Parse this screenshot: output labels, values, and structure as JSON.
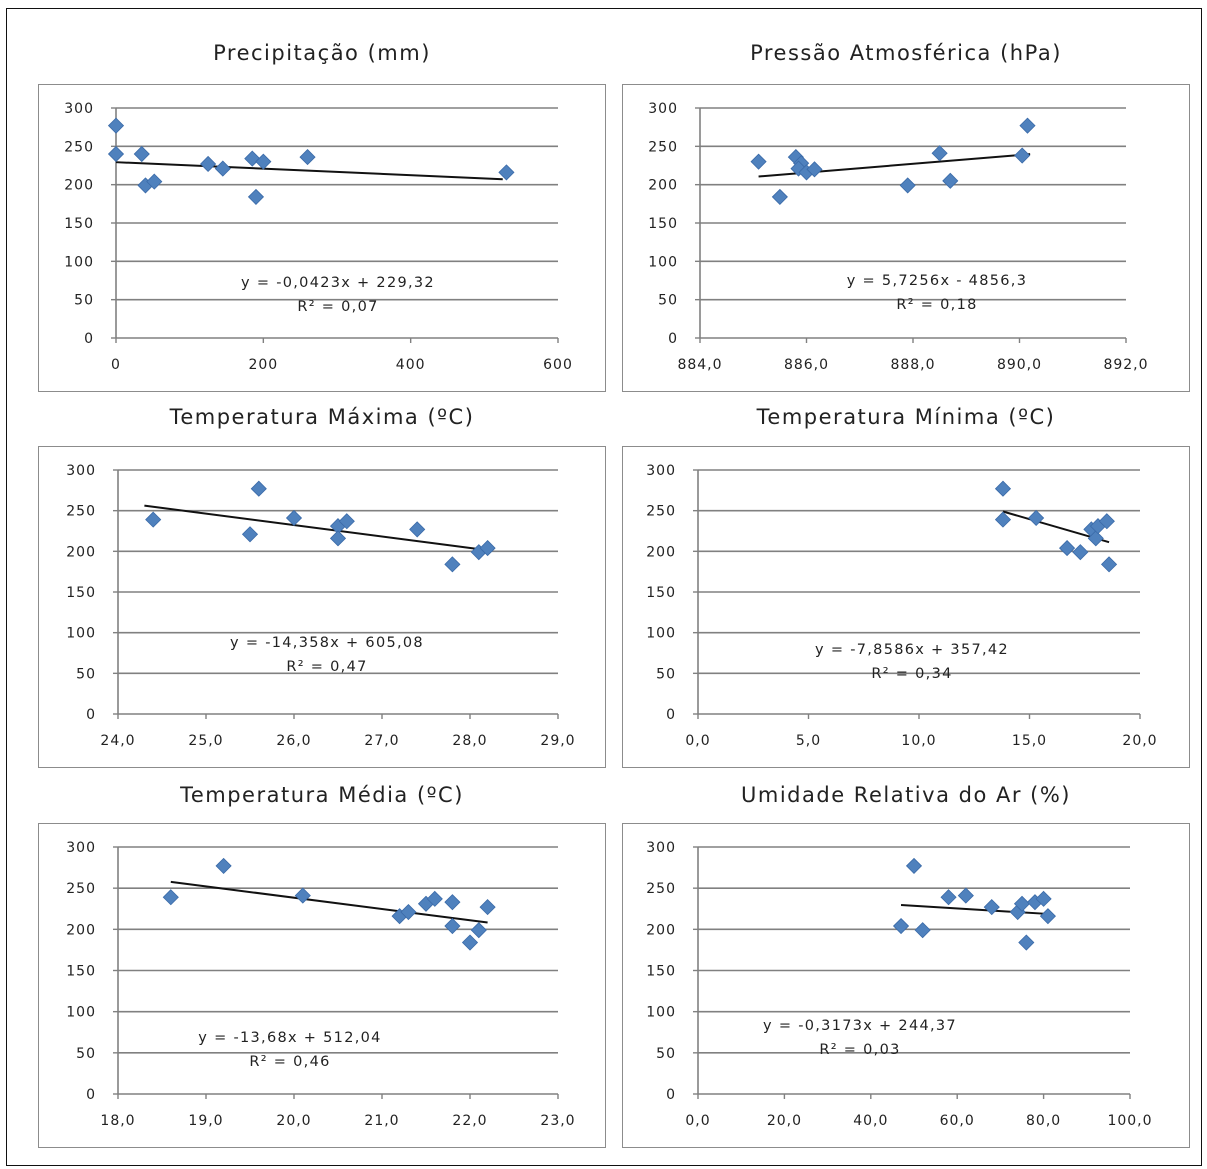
{
  "chart_data": [
    {
      "type": "scatter",
      "title": "Precipitação (mm)",
      "xticks": [
        "0",
        "200",
        "400",
        "600"
      ],
      "xlim": [
        0,
        600
      ],
      "yticks": [
        "300",
        "250",
        "200",
        "150",
        "100",
        "50",
        "0"
      ],
      "ylim": [
        0,
        300
      ],
      "grid": "horizontal",
      "marker_color": "#4f81bd",
      "points": [
        [
          0,
          277
        ],
        [
          0,
          240
        ],
        [
          35,
          240
        ],
        [
          40,
          199
        ],
        [
          52,
          204
        ],
        [
          125,
          227
        ],
        [
          145,
          221
        ],
        [
          185,
          234
        ],
        [
          200,
          230
        ],
        [
          190,
          184
        ],
        [
          260,
          236
        ],
        [
          530,
          216
        ]
      ],
      "trendline": {
        "x": [
          0,
          525
        ],
        "y": [
          229.32,
          207.1
        ]
      },
      "equation": "y = -0,0423x + 229,32",
      "r2": "R² = 0,07"
    },
    {
      "type": "scatter",
      "title": "Pressão Atmosférica (hPa)",
      "xticks": [
        "884,0",
        "886,0",
        "888,0",
        "890,0",
        "892,0"
      ],
      "xlim": [
        884,
        892
      ],
      "yticks": [
        "300",
        "250",
        "200",
        "150",
        "100",
        "50",
        "0"
      ],
      "ylim": [
        0,
        300
      ],
      "grid": "horizontal",
      "marker_color": "#4f81bd",
      "points": [
        [
          885.1,
          230
        ],
        [
          885.5,
          184
        ],
        [
          885.8,
          236
        ],
        [
          885.9,
          228
        ],
        [
          885.85,
          221
        ],
        [
          886.0,
          216
        ],
        [
          886.15,
          220
        ],
        [
          887.9,
          199
        ],
        [
          888.5,
          241
        ],
        [
          888.7,
          205
        ],
        [
          890.05,
          238
        ],
        [
          890.15,
          277
        ]
      ],
      "trendline": {
        "x": [
          885.1,
          890.2
        ],
        "y": [
          210.6,
          239.8
        ]
      },
      "equation": "y = 5,7256x - 4856,3",
      "r2": "R² = 0,18"
    },
    {
      "type": "scatter",
      "title": "Temperatura Máxima (ºC)",
      "xticks": [
        "24,0",
        "25,0",
        "26,0",
        "27,0",
        "28,0",
        "29,0"
      ],
      "xlim": [
        24,
        29
      ],
      "yticks": [
        "300",
        "250",
        "200",
        "150",
        "100",
        "50",
        "0"
      ],
      "ylim": [
        0,
        300
      ],
      "grid": "horizontal",
      "marker_color": "#4f81bd",
      "points": [
        [
          24.4,
          239
        ],
        [
          25.5,
          221
        ],
        [
          25.6,
          277
        ],
        [
          26.0,
          241
        ],
        [
          26.5,
          231
        ],
        [
          26.5,
          216
        ],
        [
          26.6,
          237
        ],
        [
          27.4,
          227
        ],
        [
          27.8,
          184
        ],
        [
          28.1,
          199
        ],
        [
          28.2,
          204
        ]
      ],
      "trendline": {
        "x": [
          24.3,
          28.2
        ],
        "y": [
          256.2,
          201.3
        ]
      },
      "equation": "y = -14,358x + 605,08",
      "r2": "R² = 0,47"
    },
    {
      "type": "scatter",
      "title": "Temperatura Mínima (ºC)",
      "xticks": [
        "0,0",
        "5,0",
        "10,0",
        "15,0",
        "20,0"
      ],
      "xlim": [
        0,
        20
      ],
      "yticks": [
        "300",
        "250",
        "200",
        "150",
        "100",
        "50",
        "0"
      ],
      "ylim": [
        0,
        300
      ],
      "grid": "horizontal",
      "marker_color": "#4f81bd",
      "points": [
        [
          13.8,
          277
        ],
        [
          13.8,
          239
        ],
        [
          15.3,
          241
        ],
        [
          16.7,
          204
        ],
        [
          17.3,
          199
        ],
        [
          17.8,
          227
        ],
        [
          18.0,
          216
        ],
        [
          18.1,
          231
        ],
        [
          18.5,
          237
        ],
        [
          18.6,
          184
        ]
      ],
      "trendline": {
        "x": [
          13.8,
          18.6
        ],
        "y": [
          249.0,
          211.2
        ]
      },
      "equation": "y = -7,8586x + 357,42",
      "r2": "R² = 0,34"
    },
    {
      "type": "scatter",
      "title": "Temperatura Média (ºC)",
      "xticks": [
        "18,0",
        "19,0",
        "20,0",
        "21,0",
        "22,0",
        "23,0"
      ],
      "xlim": [
        18,
        23
      ],
      "yticks": [
        "300",
        "250",
        "200",
        "150",
        "100",
        "50",
        "0"
      ],
      "ylim": [
        0,
        300
      ],
      "grid": "horizontal",
      "marker_color": "#4f81bd",
      "points": [
        [
          18.6,
          239
        ],
        [
          19.2,
          277
        ],
        [
          20.1,
          241
        ],
        [
          21.2,
          216
        ],
        [
          21.3,
          221
        ],
        [
          21.5,
          231
        ],
        [
          21.6,
          237
        ],
        [
          21.8,
          233
        ],
        [
          21.8,
          204
        ],
        [
          22.0,
          184
        ],
        [
          22.1,
          199
        ],
        [
          22.2,
          227
        ]
      ],
      "trendline": {
        "x": [
          18.6,
          22.2
        ],
        "y": [
          257.6,
          208.3
        ]
      },
      "equation": "y = -13,68x + 512,04",
      "r2": "R² = 0,46"
    },
    {
      "type": "scatter",
      "title": "Umidade Relativa do Ar (%)",
      "xticks": [
        "0,0",
        "20,0",
        "40,0",
        "60,0",
        "80,0",
        "100,0"
      ],
      "xlim": [
        0,
        100
      ],
      "yticks": [
        "300",
        "250",
        "200",
        "150",
        "100",
        "50",
        "0"
      ],
      "ylim": [
        0,
        300
      ],
      "grid": "horizontal",
      "marker_color": "#4f81bd",
      "points": [
        [
          47,
          204
        ],
        [
          50,
          277
        ],
        [
          52,
          199
        ],
        [
          58,
          239
        ],
        [
          62,
          241
        ],
        [
          68,
          227
        ],
        [
          74,
          221
        ],
        [
          75,
          231
        ],
        [
          76,
          184
        ],
        [
          78,
          233
        ],
        [
          80,
          237
        ],
        [
          81,
          216
        ]
      ],
      "trendline": {
        "x": [
          47,
          81
        ],
        "y": [
          229.5,
          218.7
        ]
      },
      "equation": "y = -0,3173x + 244,37",
      "r2": "R² = 0,03"
    }
  ]
}
